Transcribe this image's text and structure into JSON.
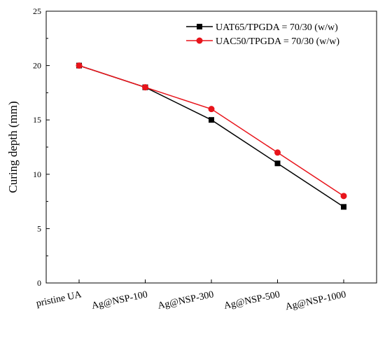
{
  "chart_data": {
    "type": "line",
    "categories": [
      "pristine UA",
      "Ag@NSP-100",
      "Ag@NSP-300",
      "Ag@NSP-500",
      "Ag@NSP-1000"
    ],
    "series": [
      {
        "name": "UAT65/TPGDA = 70/30 (w/w)",
        "values": [
          20,
          18,
          15,
          11,
          7
        ],
        "color": "#000000",
        "marker": "square"
      },
      {
        "name": "UAC50/TPGDA = 70/30 (w/w)",
        "values": [
          20,
          18,
          16,
          12,
          8
        ],
        "color": "#e8141b",
        "marker": "circle"
      }
    ],
    "ylabel": "Curing depth (mm)",
    "xlabel": "",
    "ylim": [
      0,
      25
    ],
    "yticks": [
      0,
      5,
      10,
      15,
      20,
      25
    ],
    "legend": "top-right",
    "grid": false
  }
}
